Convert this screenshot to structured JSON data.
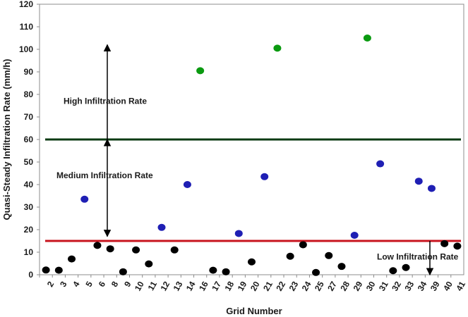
{
  "chart_data": {
    "type": "scatter",
    "ylabel": "Quasi-Steady Infiltration Rate (mm/h)",
    "xlabel": "Grid Number",
    "ylim": [
      0,
      120
    ],
    "yticks": [
      0,
      10,
      20,
      30,
      40,
      50,
      60,
      70,
      80,
      90,
      100,
      110,
      120
    ],
    "grid": false,
    "categories": [
      "2",
      "3",
      "4",
      "5",
      "6",
      "8",
      "9",
      "10",
      "11",
      "12",
      "13",
      "14",
      "16",
      "17",
      "18",
      "19",
      "20",
      "21",
      "22",
      "23",
      "24",
      "25",
      "27",
      "28",
      "29",
      "30",
      "31",
      "32",
      "33",
      "34",
      "39",
      "40",
      "41"
    ],
    "values": [
      2.1,
      2.0,
      7.0,
      33.5,
      13.0,
      11.5,
      1.3,
      11.0,
      4.8,
      21.0,
      11.0,
      40.0,
      90.5,
      2.0,
      1.3,
      18.3,
      5.7,
      43.5,
      100.5,
      8.2,
      13.3,
      1.0,
      8.5,
      3.7,
      17.5,
      105.0,
      49.2,
      1.8,
      3.2,
      41.5,
      38.3,
      13.8,
      12.7
    ],
    "point_colors": [
      "#000000",
      "#000000",
      "#000000",
      "#1f1fb4",
      "#000000",
      "#000000",
      "#000000",
      "#000000",
      "#000000",
      "#1f1fb4",
      "#000000",
      "#1f1fb4",
      "#0a9a10",
      "#000000",
      "#000000",
      "#1f1fb4",
      "#000000",
      "#1f1fb4",
      "#0a9a10",
      "#000000",
      "#000000",
      "#000000",
      "#000000",
      "#000000",
      "#1f1fb4",
      "#0a9a10",
      "#1f1fb4",
      "#000000",
      "#000000",
      "#1f1fb4",
      "#1f1fb4",
      "#000000",
      "#000000"
    ],
    "thresholds": [
      {
        "value": 60,
        "color": "#0b3a12"
      },
      {
        "value": 15,
        "color": "#c8141e"
      }
    ],
    "annotations": [
      {
        "text": "High Infiltration Rate",
        "y": 77
      },
      {
        "text": "Medium Infiltration Rate",
        "y": 44
      },
      {
        "text": "Low Infiltration  Rate",
        "y": 8
      }
    ]
  }
}
